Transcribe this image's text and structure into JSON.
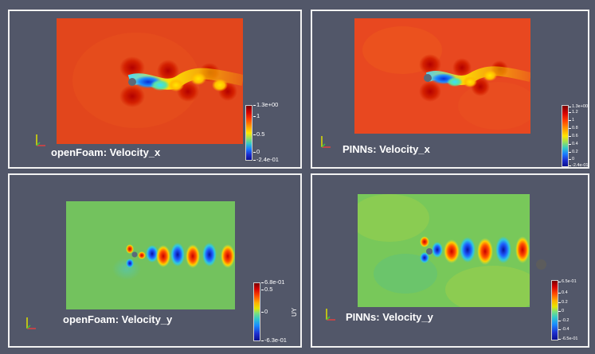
{
  "panels": {
    "top_left": {
      "label": "openFoam: Velocity_x",
      "ticks": [
        "1.3e+00",
        "1",
        "0.5",
        "0",
        "-2.4e-01"
      ]
    },
    "top_right": {
      "label": "PINNs: Velocity_x",
      "ticks": [
        "1.3e+00",
        "1.2",
        "1",
        "0.8",
        "0.6",
        "0.4",
        "0.2",
        "0",
        "-2.4e-01"
      ]
    },
    "bottom_left": {
      "label": "openFoam: Velocity_y",
      "ticks": [
        "6.8e-01",
        "0.5",
        "0",
        "-6.3e-01"
      ],
      "axis_title": "UY"
    },
    "bottom_right": {
      "label": "PINNs: Velocity_y",
      "ticks": [
        "6.5e-01",
        "0.4",
        "0.2",
        "0",
        "-0.2",
        "-0.4",
        "-6.5e-01"
      ]
    }
  },
  "colors": {
    "background": "#525769",
    "panel_border": "#f2f2f2",
    "field_ux_base": "#e2461c",
    "field_uy_base": "#73c25e"
  },
  "icons": [
    "axes-orientation-icon",
    "cylinder-icon"
  ]
}
